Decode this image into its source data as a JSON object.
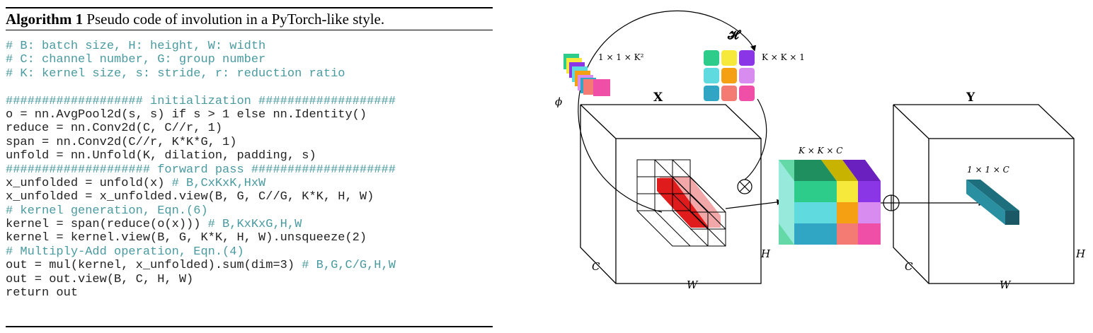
{
  "algorithm": {
    "label": "Algorithm 1",
    "caption": "Pseudo code of involution in a PyTorch-like style.",
    "code": [
      {
        "text": "# B: batch size, H: height, W: width",
        "comment": ""
      },
      {
        "text": "# C: channel number, G: group number",
        "comment": ""
      },
      {
        "text": "# K: kernel size, s: stride, r: reduction ratio",
        "comment": ""
      },
      {
        "text": "",
        "comment": ""
      },
      {
        "text": "################### initialization ###################",
        "comment": ""
      },
      {
        "text": "o = nn.AvgPool2d(s, s) if s > 1 else nn.Identity()",
        "comment": ""
      },
      {
        "text": "reduce = nn.Conv2d(C, C//r, 1)",
        "comment": ""
      },
      {
        "text": "span = nn.Conv2d(C//r, K*K*G, 1)",
        "comment": ""
      },
      {
        "text": "unfold = nn.Unfold(K, dilation, padding, s)",
        "comment": ""
      },
      {
        "text": "#################### forward pass ####################",
        "comment": ""
      },
      {
        "text": "x_unfolded = unfold(x) ",
        "comment": "# B,CxKxK,HxW"
      },
      {
        "text": "x_unfolded = x_unfolded.view(B, G, C//G, K*K, H, W)",
        "comment": ""
      },
      {
        "text": "# kernel generation, Eqn.(6)",
        "comment": ""
      },
      {
        "text": "kernel = span(reduce(o(x))) ",
        "comment": "# B,KxKxG,H,W"
      },
      {
        "text": "kernel = kernel.view(B, G, K*K, H, W).unsqueeze(2)",
        "comment": ""
      },
      {
        "text": "# Multiply-Add operation, Eqn.(4)",
        "comment": ""
      },
      {
        "text": "out = mul(kernel, x_unfolded).sum(dim=3) ",
        "comment": "# B,G,C/G,H,W"
      },
      {
        "text": "out = out.view(B, C, H, W)",
        "comment": ""
      },
      {
        "text": "return out",
        "comment": ""
      }
    ]
  },
  "diagram": {
    "labels": {
      "phi": "ϕ",
      "H_cal": "𝓗",
      "kernel_dim_1x1xK2": "1 × 1 × K²",
      "kernel_dim_KxKx1": "K × K × 1",
      "X": "X",
      "Y": "Y",
      "KxKxC": "K × K × C",
      "out_1x1xC": "1 × 1 × C",
      "in_C": "C",
      "in_H": "H",
      "in_W": "W",
      "out_C": "C",
      "out_H": "H",
      "out_W": "W",
      "otimes": "⊗",
      "oplus": "⊕"
    },
    "colors": {
      "kernel_grid": [
        "#2ecc8a",
        "#f7e93b",
        "#8a35e6",
        "#5fdbe0",
        "#f5a013",
        "#d98cf0",
        "#30a6c4",
        "#f47a74",
        "#ef4fa6"
      ],
      "highlight_red": "#e01b1b",
      "output_vector": "#2a8fa0"
    }
  }
}
